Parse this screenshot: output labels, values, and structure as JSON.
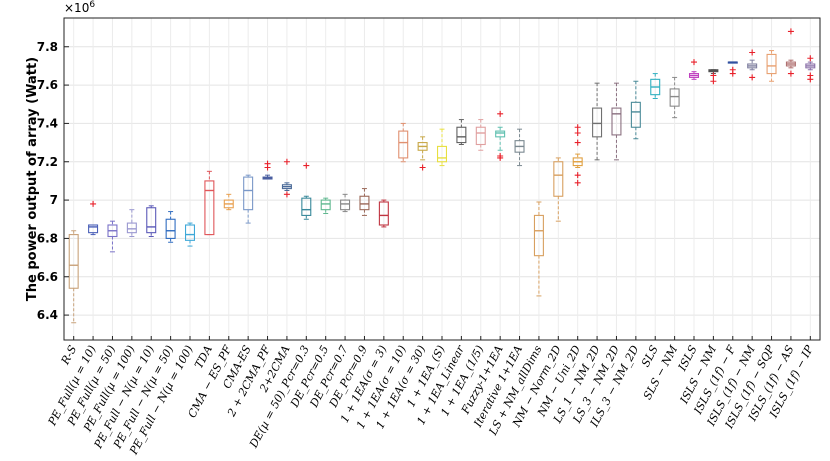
{
  "chart_data": {
    "type": "box",
    "title": "",
    "xlabel": "",
    "ylabel": "The power output of array (Watt)",
    "exponent_label": "×10^6",
    "exponent_base": "×10",
    "exponent_power": "6",
    "ylim": [
      6.27,
      7.95
    ],
    "yticks": [
      6.4,
      6.6,
      6.8,
      7,
      7.2,
      7.4,
      7.6,
      7.8
    ],
    "ytick_labels": [
      "6.4",
      "6.6",
      "6.8",
      "7",
      "7.2",
      "7.4",
      "7.6",
      "7.8"
    ],
    "grid": true,
    "categories": [
      "R-S",
      "PE_Full(µ = 10)",
      "PE_Full(µ = 50)",
      "PE_Full(µ = 100)",
      "PE_Full − N(µ = 10)",
      "PE_Full − N(µ = 50)",
      "PE_Full − N(µ = 100)",
      "TDA",
      "CMA − ES_PF",
      "CMA-ES",
      "2 + 2CMA_PF",
      "2+2CMA",
      "DE(µ = 50)_Pcr=0.3",
      "DE_Pcr=0.5",
      "DE_Pcr=0.7",
      "DE_Pcr=0.9",
      "1 + 1EA(σ = 3)",
      "1 + 1EA(σ = 10)",
      "1 + 1EA(σ = 30)",
      "1 + 1EA_(S)",
      "1 + 1EA_Linear",
      "1 + 1EA_(1/5)",
      "Fuzzy-1+1EA",
      "Iterative 1+1EA",
      "LS + NM_allDims",
      "NM − Norm_2D",
      "NM − Uni_2D",
      "LS_1 − NM_2D",
      "LS_3 − NM_2D",
      "ILS_3 − NM_2D",
      "SLS",
      "SLS − NM",
      "ISLS",
      "ISLS − NM",
      "ISLS_(1f) − F",
      "ISLS_(1f) − NM",
      "ISLS_(1f) − SQP",
      "ISLS_(1f) − AS",
      "ISLS_(1f) − IP"
    ],
    "boxes": [
      {
        "color": "#c9a27a",
        "min": 6.36,
        "q1": 6.54,
        "median": 6.66,
        "q3": 6.82,
        "max": 6.84,
        "outliers": []
      },
      {
        "color": "#4a5fb8",
        "min": 6.82,
        "q1": 6.83,
        "median": 6.86,
        "q3": 6.87,
        "max": 6.87,
        "outliers": [
          6.98
        ]
      },
      {
        "color": "#7a72c8",
        "min": 6.73,
        "q1": 6.81,
        "median": 6.84,
        "q3": 6.87,
        "max": 6.89,
        "outliers": []
      },
      {
        "color": "#9a98d0",
        "min": 6.81,
        "q1": 6.83,
        "median": 6.85,
        "q3": 6.88,
        "max": 6.95,
        "outliers": []
      },
      {
        "color": "#5c5ab8",
        "min": 6.81,
        "q1": 6.83,
        "median": 6.86,
        "q3": 6.96,
        "max": 6.97,
        "outliers": []
      },
      {
        "color": "#2f6cc0",
        "min": 6.78,
        "q1": 6.8,
        "median": 6.84,
        "q3": 6.9,
        "max": 6.94,
        "outliers": []
      },
      {
        "color": "#3fa8d8",
        "min": 6.76,
        "q1": 6.79,
        "median": 6.82,
        "q3": 6.87,
        "max": 6.88,
        "outliers": []
      },
      {
        "color": "#e0565a",
        "min": 6.82,
        "q1": 6.82,
        "median": 7.05,
        "q3": 7.1,
        "max": 7.15,
        "outliers": []
      },
      {
        "color": "#e8a050",
        "min": 6.95,
        "q1": 6.96,
        "median": 6.98,
        "q3": 7.0,
        "max": 7.03,
        "outliers": []
      },
      {
        "color": "#7a98c8",
        "min": 6.88,
        "q1": 6.95,
        "median": 7.05,
        "q3": 7.12,
        "max": 7.13,
        "outliers": []
      },
      {
        "color": "#4a5ea0",
        "min": 7.11,
        "q1": 7.11,
        "median": 7.115,
        "q3": 7.12,
        "max": 7.13,
        "outliers": [
          7.17,
          7.19
        ]
      },
      {
        "color": "#4a6a98",
        "min": 7.05,
        "q1": 7.06,
        "median": 7.07,
        "q3": 7.08,
        "max": 7.09,
        "outliers": [
          7.03,
          7.2
        ]
      },
      {
        "color": "#38889a",
        "min": 6.9,
        "q1": 6.92,
        "median": 6.95,
        "q3": 7.01,
        "max": 7.02,
        "outliers": [
          7.18
        ]
      },
      {
        "color": "#60b890",
        "min": 6.93,
        "q1": 6.95,
        "median": 6.98,
        "q3": 7.0,
        "max": 7.01,
        "outliers": []
      },
      {
        "color": "#888888",
        "min": 6.94,
        "q1": 6.95,
        "median": 6.98,
        "q3": 7.0,
        "max": 7.03,
        "outliers": []
      },
      {
        "color": "#9a6858",
        "min": 6.92,
        "q1": 6.95,
        "median": 6.98,
        "q3": 7.02,
        "max": 7.06,
        "outliers": []
      },
      {
        "color": "#c03440",
        "min": 6.86,
        "q1": 6.87,
        "median": 6.92,
        "q3": 6.99,
        "max": 7.0,
        "outliers": []
      },
      {
        "color": "#e09070",
        "min": 7.2,
        "q1": 7.22,
        "median": 7.3,
        "q3": 7.36,
        "max": 7.4,
        "outliers": []
      },
      {
        "color": "#c8a848",
        "min": 7.21,
        "q1": 7.26,
        "median": 7.28,
        "q3": 7.3,
        "max": 7.33,
        "outliers": [
          7.17
        ]
      },
      {
        "color": "#e8e040",
        "min": 7.18,
        "q1": 7.2,
        "median": 7.22,
        "q3": 7.28,
        "max": 7.37,
        "outliers": []
      },
      {
        "color": "#606060",
        "min": 7.29,
        "q1": 7.3,
        "median": 7.33,
        "q3": 7.38,
        "max": 7.42,
        "outliers": []
      },
      {
        "color": "#e0a0a0",
        "min": 7.26,
        "q1": 7.29,
        "median": 7.35,
        "q3": 7.38,
        "max": 7.42,
        "outliers": []
      },
      {
        "color": "#60c0b0",
        "min": 7.26,
        "q1": 7.33,
        "median": 7.35,
        "q3": 7.36,
        "max": 7.38,
        "outliers": [
          7.23,
          7.22,
          7.45
        ]
      },
      {
        "color": "#7a8890",
        "min": 7.18,
        "q1": 7.25,
        "median": 7.28,
        "q3": 7.31,
        "max": 7.37,
        "outliers": []
      },
      {
        "color": "#d8a060",
        "min": 6.5,
        "q1": 6.71,
        "median": 6.84,
        "q3": 6.92,
        "max": 6.99,
        "outliers": []
      },
      {
        "color": "#d8a060",
        "min": 6.89,
        "q1": 7.02,
        "median": 7.13,
        "q3": 7.2,
        "max": 7.22,
        "outliers": []
      },
      {
        "color": "#e0a040",
        "min": 7.17,
        "q1": 7.18,
        "median": 7.2,
        "q3": 7.22,
        "max": 7.24,
        "outliers": [
          7.09,
          7.13,
          7.3,
          7.35,
          7.38
        ]
      },
      {
        "color": "#707070",
        "min": 7.21,
        "q1": 7.33,
        "median": 7.4,
        "q3": 7.48,
        "max": 7.61,
        "outliers": []
      },
      {
        "color": "#8a7080",
        "min": 7.21,
        "q1": 7.34,
        "median": 7.45,
        "q3": 7.48,
        "max": 7.61,
        "outliers": []
      },
      {
        "color": "#4a8a98",
        "min": 7.32,
        "q1": 7.38,
        "median": 7.46,
        "q3": 7.51,
        "max": 7.62,
        "outliers": []
      },
      {
        "color": "#30b0c0",
        "min": 7.53,
        "q1": 7.55,
        "median": 7.59,
        "q3": 7.63,
        "max": 7.66,
        "outliers": []
      },
      {
        "color": "#8a8a8a",
        "min": 7.43,
        "q1": 7.49,
        "median": 7.54,
        "q3": 7.58,
        "max": 7.64,
        "outliers": []
      },
      {
        "color": "#c040c0",
        "min": 7.63,
        "q1": 7.64,
        "median": 7.65,
        "q3": 7.66,
        "max": 7.67,
        "outliers": [
          7.72
        ]
      },
      {
        "color": "#505050",
        "min": 7.66,
        "q1": 7.67,
        "median": 7.675,
        "q3": 7.68,
        "max": 7.68,
        "outliers": [
          7.62,
          7.65
        ]
      },
      {
        "color": "#3050a0",
        "min": 7.72,
        "q1": 7.72,
        "median": 7.72,
        "q3": 7.72,
        "max": 7.72,
        "outliers": [
          7.66,
          7.68
        ]
      },
      {
        "color": "#8080a0",
        "min": 7.68,
        "q1": 7.69,
        "median": 7.7,
        "q3": 7.71,
        "max": 7.73,
        "outliers": [
          7.64,
          7.77
        ]
      },
      {
        "color": "#e8a070",
        "min": 7.62,
        "q1": 7.66,
        "median": 7.7,
        "q3": 7.76,
        "max": 7.78,
        "outliers": []
      },
      {
        "color": "#b07070",
        "min": 7.69,
        "q1": 7.7,
        "median": 7.71,
        "q3": 7.72,
        "max": 7.73,
        "outliers": [
          7.66,
          7.88
        ]
      },
      {
        "color": "#8a70a8",
        "min": 7.68,
        "q1": 7.69,
        "median": 7.7,
        "q3": 7.71,
        "max": 7.72,
        "outliers": [
          7.63,
          7.65,
          7.74
        ]
      }
    ]
  }
}
